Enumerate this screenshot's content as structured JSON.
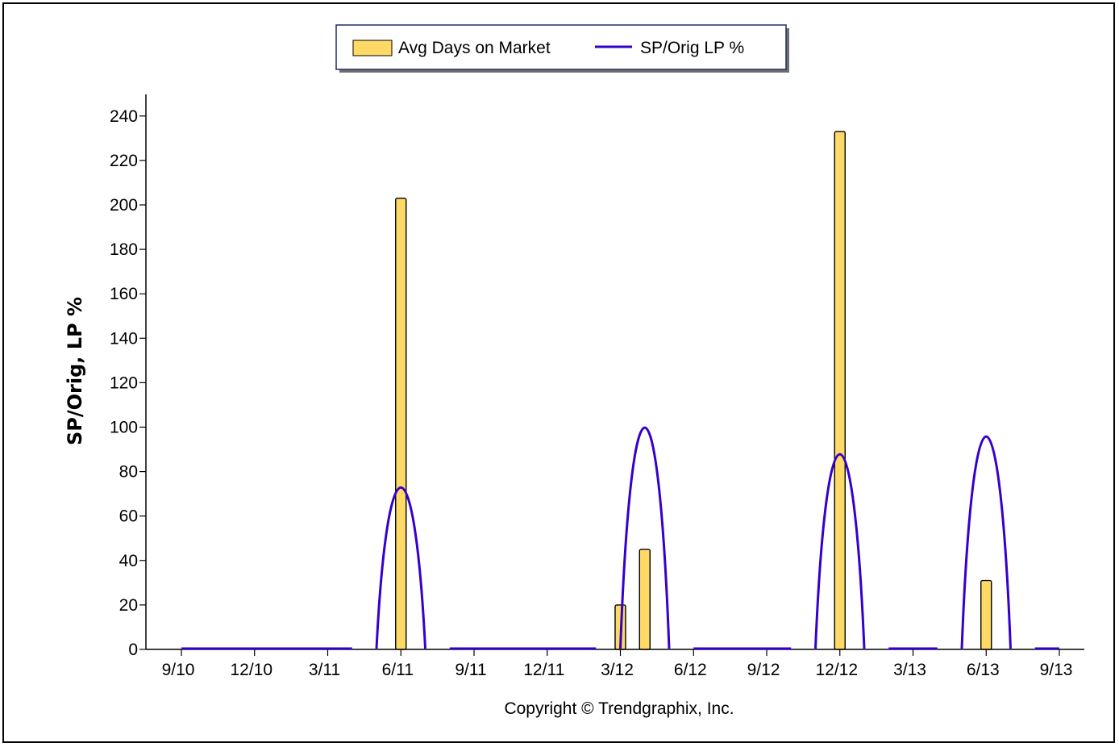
{
  "chart_data": {
    "type": "bar",
    "categories": [
      "9/10",
      "12/10",
      "3/11",
      "6/11",
      "9/11",
      "12/11",
      "3/12",
      "6/12",
      "9/12",
      "12/12",
      "3/13",
      "6/13",
      "9/13"
    ],
    "x": [
      "9/10",
      "10/10",
      "11/10",
      "12/10",
      "1/11",
      "2/11",
      "3/11",
      "4/11",
      "5/11",
      "6/11",
      "7/11",
      "8/11",
      "9/11",
      "10/11",
      "11/11",
      "12/11",
      "1/12",
      "2/12",
      "3/12",
      "4/12",
      "5/12",
      "6/12",
      "7/12",
      "8/12",
      "9/12",
      "10/12",
      "11/12",
      "12/12",
      "1/13",
      "2/13",
      "3/13",
      "4/13",
      "5/13",
      "6/13",
      "7/13",
      "8/13",
      "9/13"
    ],
    "series": [
      {
        "name": "Avg Days on Market",
        "type": "bar",
        "values": [
          0,
          0,
          0,
          0,
          0,
          0,
          0,
          0,
          0,
          203,
          0,
          0,
          0,
          0,
          0,
          0,
          0,
          0,
          20,
          45,
          0,
          0,
          0,
          0,
          0,
          0,
          0,
          233,
          0,
          0,
          0,
          0,
          0,
          31,
          0,
          0,
          0
        ]
      },
      {
        "name": "SP/Orig LP %",
        "type": "line",
        "values": [
          0,
          0,
          0,
          0,
          0,
          0,
          0,
          0,
          0,
          73,
          0,
          0,
          0,
          0,
          0,
          0,
          0,
          0,
          0,
          100,
          0,
          0,
          0,
          0,
          0,
          0,
          0,
          88,
          0,
          0,
          0,
          0,
          0,
          96,
          0,
          0,
          0
        ]
      }
    ],
    "title": "",
    "xlabel": "",
    "ylabel": "SP/Orig, LP %",
    "ylim": [
      0,
      240
    ],
    "yticks": [
      0,
      20,
      40,
      60,
      80,
      100,
      120,
      140,
      160,
      180,
      200,
      220,
      240
    ],
    "grid": false,
    "legend_position": "top-center",
    "colors": {
      "bar_fill": "#FFD966",
      "bar_stroke": "#000000",
      "line": "#3300CC"
    },
    "annotations": [
      "Copyright © Trendgraphix, Inc."
    ]
  }
}
